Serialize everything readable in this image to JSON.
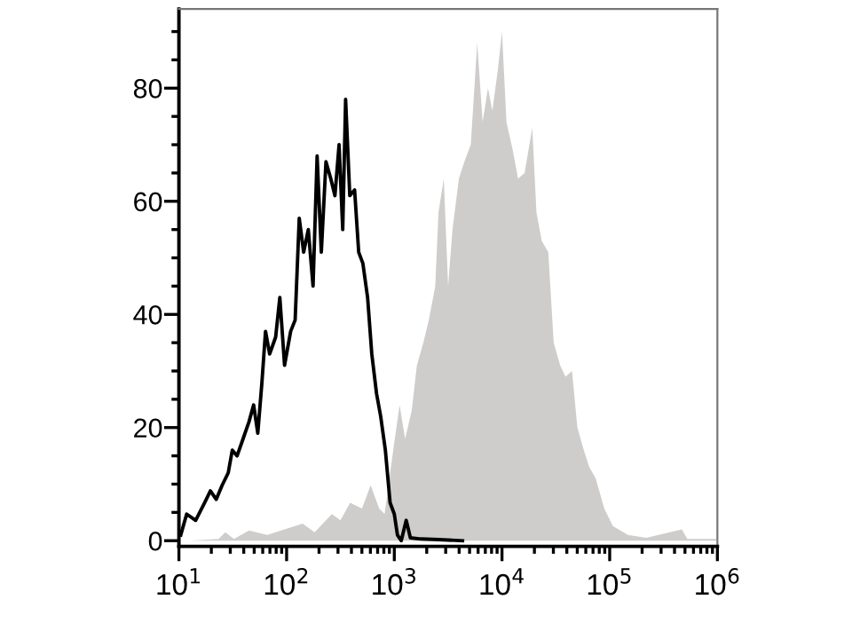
{
  "chart_data": {
    "type": "line",
    "series": [
      {
        "type": "area",
        "color": "#cfcdcb",
        "x": [
          12.6,
          23.4,
          26.9,
          32.4,
          44.7,
          66.1,
          95.5,
          141,
          182,
          263,
          316,
          389,
          501,
          603,
          724,
          813,
          977,
          1120,
          1260,
          1450,
          1620,
          1860,
          2090,
          2400,
          2570,
          2880,
          3160,
          3470,
          3980,
          4470,
          5130,
          5890,
          6610,
          7410,
          8130,
          9120,
          10000,
          11000,
          12600,
          14100,
          16200,
          19100,
          20900,
          23400,
          26900,
          30200,
          34700,
          38900,
          44700,
          50100,
          57500,
          64600,
          74100,
          89100,
          107000,
          148000,
          219000,
          468000,
          525000,
          759000,
          977000
        ],
        "values": [
          0,
          0.3,
          1.5,
          0.3,
          1.8,
          1,
          2,
          3,
          1.5,
          4.7,
          3.6,
          6.7,
          5.7,
          9.8,
          5.7,
          4.7,
          16,
          24,
          18,
          23,
          31,
          35,
          39,
          45,
          58,
          64,
          45,
          55,
          64,
          67,
          70,
          88,
          74,
          80,
          76,
          83,
          90,
          74,
          69,
          64,
          65,
          73,
          58,
          53,
          51,
          35,
          31,
          29,
          30,
          20,
          16,
          13,
          11,
          5.7,
          2.6,
          1,
          0.5,
          2,
          0.3,
          0.3,
          0.3
        ]
      },
      {
        "color": "#000000",
        "x": [
          10.4,
          11.8,
          14.3,
          17.3,
          19.6,
          22.2,
          25.2,
          28.7,
          31.3,
          34.7,
          39.4,
          44.7,
          49.4,
          54.0,
          59.0,
          63.7,
          69.6,
          79.1,
          86.5,
          95.7,
          109,
          120,
          131,
          144,
          159,
          176,
          192,
          210,
          232,
          257,
          281,
          307,
          332,
          353,
          386,
          428,
          467,
          511,
          565,
          618,
          684,
          747,
          826,
          914,
          1000,
          1070,
          1160,
          1290,
          1410,
          1770,
          2590,
          4300
        ],
        "values": [
          1,
          4.7,
          3.6,
          6.7,
          8.8,
          7.3,
          9.8,
          12,
          16,
          15,
          18,
          21,
          24,
          19,
          28,
          37,
          33,
          36,
          43,
          31,
          37,
          39,
          57,
          51,
          55,
          45,
          68,
          51,
          67,
          64,
          61,
          70,
          55,
          78,
          61,
          62,
          51,
          49,
          43,
          33,
          26,
          22,
          16,
          6.7,
          4.7,
          1,
          0,
          3.6,
          0.5,
          0.3,
          0.2,
          0
        ]
      }
    ],
    "log": "x",
    "grid": false,
    "marker": "none",
    "line_style": "solid",
    "xlim": [
      10,
      1000000
    ],
    "ylim": [
      -1,
      94
    ],
    "xticks": [
      {
        "value": 10,
        "label": "10$^{1}$"
      },
      {
        "value": 20,
        "label": null
      },
      {
        "value": 30,
        "label": null
      },
      {
        "value": 40,
        "label": null
      },
      {
        "value": 50,
        "label": null
      },
      {
        "value": 60,
        "label": null
      },
      {
        "value": 70,
        "label": null
      },
      {
        "value": 80,
        "label": null
      },
      {
        "value": 90,
        "label": null
      },
      {
        "value": 100,
        "label": "10$^{2}$"
      },
      {
        "value": 200,
        "label": null
      },
      {
        "value": 300,
        "label": null
      },
      {
        "value": 400,
        "label": null
      },
      {
        "value": 500,
        "label": null
      },
      {
        "value": 600,
        "label": null
      },
      {
        "value": 700,
        "label": null
      },
      {
        "value": 800,
        "label": null
      },
      {
        "value": 900,
        "label": null
      },
      {
        "value": 1000,
        "label": "10$^{3}$"
      },
      {
        "value": 2000,
        "label": null
      },
      {
        "value": 3000,
        "label": null
      },
      {
        "value": 4000,
        "label": null
      },
      {
        "value": 5000,
        "label": null
      },
      {
        "value": 6000,
        "label": null
      },
      {
        "value": 7000,
        "label": null
      },
      {
        "value": 8000,
        "label": null
      },
      {
        "value": 9000,
        "label": null
      },
      {
        "value": 10000,
        "label": "10$^{4}$"
      },
      {
        "value": 20000,
        "label": null
      },
      {
        "value": 30000,
        "label": null
      },
      {
        "value": 40000,
        "label": null
      },
      {
        "value": 50000,
        "label": null
      },
      {
        "value": 60000,
        "label": null
      },
      {
        "value": 70000,
        "label": null
      },
      {
        "value": 80000,
        "label": null
      },
      {
        "value": 90000,
        "label": null
      },
      {
        "value": 100000,
        "label": "10$^{5}$"
      },
      {
        "value": 200000,
        "label": null
      },
      {
        "value": 300000,
        "label": null
      },
      {
        "value": 400000,
        "label": null
      },
      {
        "value": 500000,
        "label": null
      },
      {
        "value": 600000,
        "label": null
      },
      {
        "value": 700000,
        "label": null
      },
      {
        "value": 800000,
        "label": null
      },
      {
        "value": 900000,
        "label": null
      },
      {
        "value": 1000000,
        "label": "10$^{6}$"
      }
    ],
    "yticks": [
      0,
      {
        "value": 5,
        "label": null
      },
      {
        "value": 10,
        "label": null
      },
      {
        "value": 15,
        "label": null
      },
      20,
      {
        "value": 25,
        "label": null
      },
      {
        "value": 30,
        "label": null
      },
      {
        "value": 35,
        "label": null
      },
      40,
      {
        "value": 45,
        "label": null
      },
      {
        "value": 50,
        "label": null
      },
      {
        "value": 55,
        "label": null
      },
      60,
      {
        "value": 65,
        "label": null
      },
      {
        "value": 70,
        "label": null
      },
      {
        "value": 75,
        "label": null
      },
      80,
      {
        "value": 85,
        "label": null
      },
      {
        "value": 90,
        "label": null
      }
    ]
  }
}
